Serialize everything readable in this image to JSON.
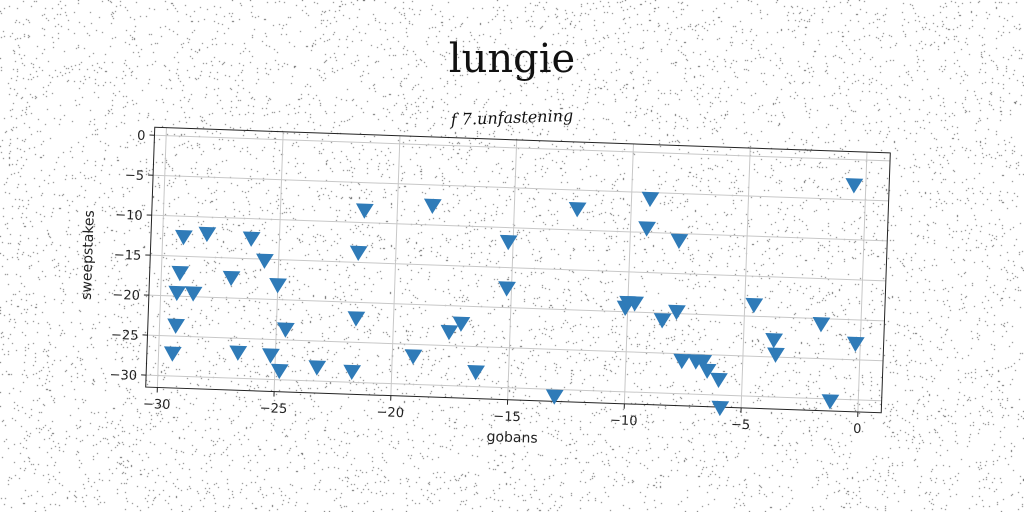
{
  "colors": {
    "marker": "#2f7bb8",
    "grid": "#c8c8c8",
    "axis": "#222222",
    "noise": "#555555"
  },
  "chart_data": {
    "type": "scatter",
    "title": "lungie",
    "subtitle": "f 7.unfastening",
    "xlabel": "gobans",
    "ylabel": "sweepstakes",
    "xlim": [
      -30.5,
      1
    ],
    "ylim": [
      -31.5,
      1
    ],
    "xticks": [
      -30,
      -25,
      -20,
      -15,
      -10,
      -5,
      0
    ],
    "yticks": [
      0,
      -5,
      -10,
      -15,
      -20,
      -25,
      -30
    ],
    "grid": true,
    "marker": "triangle-down",
    "series": [
      {
        "x": [
          -0.5,
          -9.2,
          -9.3,
          -7.9,
          -12.3,
          -18.5,
          -21.4,
          -15.2,
          -21.6,
          -25.6,
          -28.1,
          -29.1,
          -26.2,
          -27.0,
          -29.2,
          -29.3,
          -28.6,
          -25.0,
          -21.6,
          -24.6,
          -29.3,
          -29.4,
          -26.6,
          -25.2,
          -24.8,
          -23.2,
          -21.7,
          -19.1,
          -17.1,
          -17.6,
          -16.4,
          -15.2,
          -13.0,
          -10.1,
          -10.0,
          -9.7,
          -8.5,
          -7.9,
          -7.6,
          -7.0,
          -6.7,
          -6.5,
          -6.0,
          -5.9,
          -4.6,
          -3.6,
          -3.7,
          -1.7,
          -1.2,
          -0.2
        ],
        "y": [
          -3.2,
          -5.8,
          -9.5,
          -10.9,
          -7.4,
          -7.6,
          -8.5,
          -11.8,
          -13.8,
          -15.2,
          -12.1,
          -12.6,
          -12.5,
          -17.5,
          -17.1,
          -19.6,
          -19.6,
          -18.2,
          -22.0,
          -23.7,
          -23.7,
          -27.2,
          -26.8,
          -27.0,
          -28.9,
          -28.3,
          -28.7,
          -26.5,
          -22.2,
          -23.3,
          -28.2,
          -17.6,
          -30.9,
          -19.5,
          -18.9,
          -18.9,
          -20.9,
          -19.8,
          -25.9,
          -25.9,
          -25.9,
          -27.0,
          -28.1,
          -31.6,
          -18.6,
          -24.7,
          -22.9,
          -20.7,
          -30.3,
          -23.0
        ]
      }
    ]
  }
}
